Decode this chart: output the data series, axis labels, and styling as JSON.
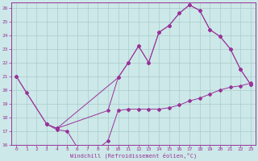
{
  "xlabel": "Windchill (Refroidissement éolien,°C)",
  "background_color": "#cce8e8",
  "grid_color": "#aacccc",
  "line_color": "#993399",
  "xlim": [
    -0.5,
    23.5
  ],
  "ylim": [
    16,
    26.4
  ],
  "xticks": [
    0,
    1,
    2,
    3,
    4,
    5,
    6,
    7,
    8,
    9,
    10,
    11,
    12,
    13,
    14,
    15,
    16,
    17,
    18,
    19,
    20,
    21,
    22,
    23
  ],
  "yticks": [
    16,
    17,
    18,
    19,
    20,
    21,
    22,
    23,
    24,
    25,
    26
  ],
  "s1x": [
    0,
    1,
    3,
    4,
    5,
    6,
    7,
    8,
    9,
    10,
    11,
    12,
    13,
    14,
    15,
    16,
    17,
    18,
    19,
    20,
    21,
    22,
    23
  ],
  "s1y": [
    21,
    19.8,
    17.5,
    17.1,
    17.0,
    15.8,
    15.7,
    15.7,
    16.3,
    18.5,
    18.6,
    18.6,
    18.6,
    18.6,
    18.7,
    18.9,
    19.2,
    19.4,
    19.7,
    20.0,
    20.2,
    20.3,
    20.5
  ],
  "s2x": [
    0,
    3,
    4,
    10,
    11,
    12,
    13,
    14,
    15,
    16,
    17,
    18,
    19,
    20,
    21,
    22,
    23
  ],
  "s2y": [
    21.0,
    17.5,
    17.2,
    20.9,
    22.0,
    23.2,
    22.0,
    24.2,
    24.7,
    25.6,
    26.2,
    25.8,
    24.4,
    23.9,
    23.0,
    21.5,
    20.4
  ],
  "s3x": [
    3,
    4,
    9,
    10,
    11,
    12,
    13,
    14,
    15,
    16,
    17,
    18,
    19,
    20,
    21,
    22,
    23
  ],
  "s3y": [
    17.5,
    17.2,
    18.5,
    20.9,
    22.0,
    23.2,
    22.0,
    24.2,
    24.7,
    25.6,
    26.2,
    25.8,
    24.4,
    23.9,
    23.0,
    21.5,
    20.4
  ]
}
